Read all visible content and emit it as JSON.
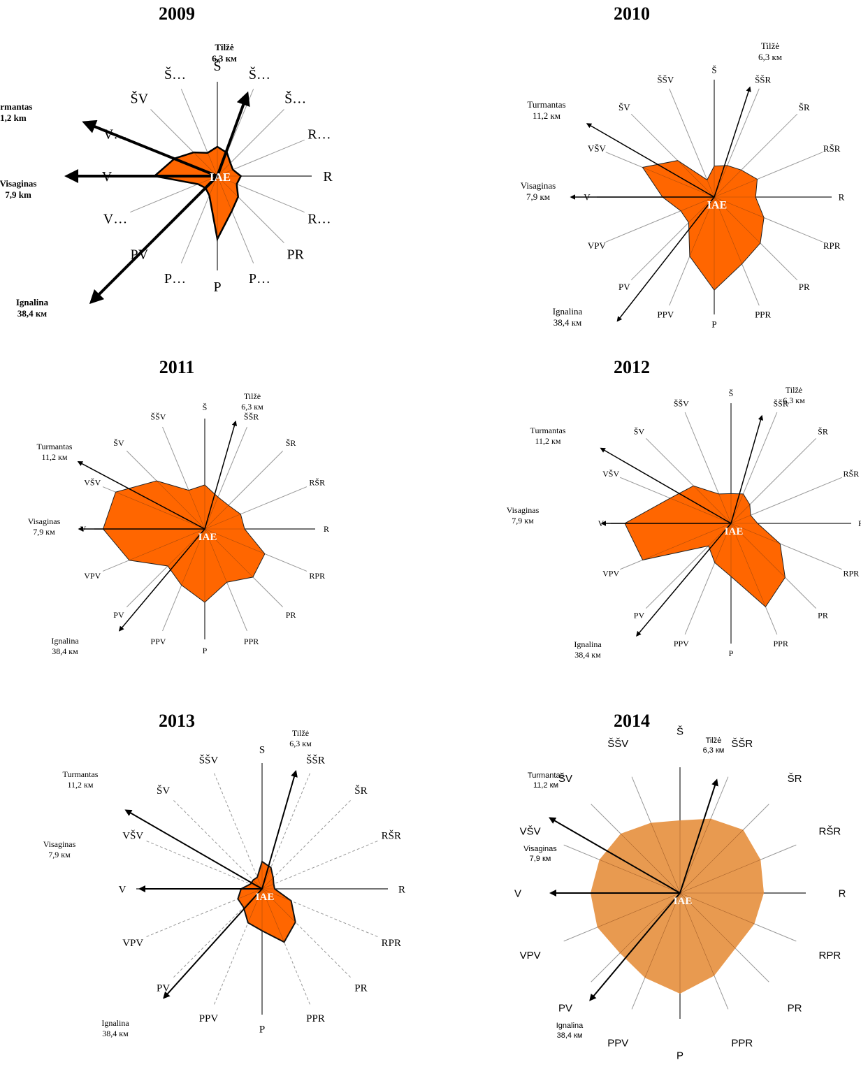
{
  "directions": [
    "Š",
    "ŠŠR",
    "ŠR",
    "RŠR",
    "R",
    "RPR",
    "PR",
    "PPR",
    "P",
    "PPV",
    "PV",
    "VPV",
    "V",
    "VŠV",
    "ŠV",
    "ŠŠV"
  ],
  "center_label": "IAE",
  "colors": {
    "rose": "#ff6600",
    "rose_2014": "#e89a50",
    "ray": "#999999",
    "arrow": "#000000"
  },
  "chart_data": [
    {
      "type": "radar",
      "title": "2009",
      "center_label": "IAE",
      "direction_labels": [
        "Š",
        "Š…",
        "Š…",
        "R…",
        "R",
        "R…",
        "PR",
        "P…",
        "P",
        "P…",
        "PV",
        "V…",
        "V",
        "V…",
        "ŠV",
        "Š…"
      ],
      "values": [
        0.35,
        0.3,
        0.22,
        0.2,
        0.28,
        0.25,
        0.35,
        0.45,
        0.75,
        0.25,
        0.2,
        0.25,
        0.75,
        0.55,
        0.4,
        0.3
      ],
      "settlements": [
        {
          "name": "Tilžė",
          "distance": "6,3 км",
          "bearing_deg": 20
        },
        {
          "name": "Turmantas",
          "distance": "11,2 km",
          "bearing_deg": 292
        },
        {
          "name": "Visaginas",
          "distance": "7,9 km",
          "bearing_deg": 270
        },
        {
          "name": "Ignalina",
          "distance": "38,4 км",
          "bearing_deg": 225
        }
      ]
    },
    {
      "type": "radar",
      "title": "2010",
      "center_label": "IAE",
      "direction_labels": [
        "Š",
        "ŠŠR",
        "ŠR",
        "RŠR",
        "R",
        "RPR",
        "PR",
        "PPR",
        "P",
        "PPV",
        "PV",
        "VPV",
        "V",
        "VŠV",
        "ŠV",
        "ŠŠV"
      ],
      "values": [
        0.3,
        0.33,
        0.37,
        0.45,
        0.4,
        0.52,
        0.63,
        0.7,
        0.9,
        0.62,
        0.35,
        0.35,
        0.5,
        0.75,
        0.5,
        0.18
      ],
      "settlements": [
        {
          "name": "Tilžė",
          "distance": "6,3 км",
          "bearing_deg": 18
        },
        {
          "name": "Turmantas",
          "distance": "11,2 км",
          "bearing_deg": 300
        },
        {
          "name": "Visaginas",
          "distance": "7,9 км",
          "bearing_deg": 270
        },
        {
          "name": "Ignalina",
          "distance": "38,4 км",
          "bearing_deg": 218
        }
      ]
    },
    {
      "type": "radar",
      "title": "2011",
      "center_label": "IAE",
      "direction_labels": [
        "Š",
        "ŠŠR",
        "ŠR",
        "RŠR",
        "R",
        "RPR",
        "PR",
        "PPR",
        "P",
        "PPV",
        "PV",
        "VPV",
        "V",
        "VŠV",
        "ŠV",
        "ŠŠV"
      ],
      "values": [
        0.42,
        0.33,
        0.32,
        0.37,
        0.38,
        0.62,
        0.65,
        0.55,
        0.7,
        0.58,
        0.5,
        0.78,
        0.97,
        0.92,
        0.65,
        0.4
      ],
      "settlements": [
        {
          "name": "Tilžė",
          "distance": "6,3 км",
          "bearing_deg": 16
        },
        {
          "name": "Turmantas",
          "distance": "11,2 км",
          "bearing_deg": 298
        },
        {
          "name": "Visaginas",
          "distance": "7,9 км",
          "bearing_deg": 270
        },
        {
          "name": "Ignalina",
          "distance": "38,4 км",
          "bearing_deg": 220
        }
      ]
    },
    {
      "type": "radar",
      "title": "2012",
      "center_label": "IAE",
      "direction_labels": [
        "Š",
        "ŠŠR",
        "ŠR",
        "RŠR",
        "R",
        "RPR",
        "PR",
        "PPR",
        "P",
        "PPV",
        "PV",
        "VPV",
        "V",
        "VŠV",
        "ŠV",
        "ŠŠV"
      ],
      "values": [
        0.28,
        0.3,
        0.25,
        0.2,
        0.25,
        0.5,
        0.72,
        0.85,
        0.5,
        0.4,
        0.3,
        0.9,
        1.0,
        0.62,
        0.5,
        0.3
      ],
      "settlements": [
        {
          "name": "Tilžė",
          "distance": "6,3 км",
          "bearing_deg": 16
        },
        {
          "name": "Turmantas",
          "distance": "11,2 км",
          "bearing_deg": 300
        },
        {
          "name": "Visaginas",
          "distance": "7,9 км",
          "bearing_deg": 270
        },
        {
          "name": "Ignalina",
          "distance": "38,4 км",
          "bearing_deg": 220
        }
      ]
    },
    {
      "type": "radar",
      "title": "2013",
      "center_label": "IAE",
      "direction_labels": [
        "S",
        "ŠŠR",
        "ŠR",
        "RŠR",
        "R",
        "RPR",
        "PR",
        "PPR",
        "P",
        "PPV",
        "PV",
        "VPV",
        "V",
        "VŠV",
        "ŠV",
        "ŠŠV"
      ],
      "values": [
        0.26,
        0.22,
        0.15,
        0.12,
        0.12,
        0.3,
        0.45,
        0.55,
        0.4,
        0.35,
        0.25,
        0.25,
        0.2,
        0.12,
        0.12,
        0.12
      ],
      "settlements": [
        {
          "name": "Tilžė",
          "distance": "6,3 км",
          "bearing_deg": 16
        },
        {
          "name": "Turmantas",
          "distance": "11,2 км",
          "bearing_deg": 300
        },
        {
          "name": "Visaginas",
          "distance": "7,9 км",
          "bearing_deg": 270
        },
        {
          "name": "Ignalina",
          "distance": "38,4 км",
          "bearing_deg": 222
        }
      ]
    },
    {
      "type": "radar",
      "title": "2014",
      "center_label": "IAE",
      "direction_labels": [
        "Š",
        "ŠŠR",
        "ŠR",
        "RŠR",
        "R",
        "RPR",
        "PR",
        "PPR",
        "P",
        "PPV",
        "PV",
        "VPV",
        "V",
        "VŠV",
        "ŠV",
        "ŠŠV"
      ],
      "values": [
        0.65,
        0.72,
        0.8,
        0.78,
        0.75,
        0.72,
        0.7,
        0.8,
        0.9,
        0.82,
        0.76,
        0.8,
        0.8,
        0.78,
        0.75,
        0.68
      ],
      "settlements": [
        {
          "name": "Tilžė",
          "distance": "6,3 км",
          "bearing_deg": 18
        },
        {
          "name": "Turmantas",
          "distance": "11,2 км",
          "bearing_deg": 300
        },
        {
          "name": "Visaginas",
          "distance": "7,9 км",
          "bearing_deg": 270
        },
        {
          "name": "Ignalina",
          "distance": "38,4 км",
          "bearing_deg": 220
        }
      ]
    }
  ]
}
